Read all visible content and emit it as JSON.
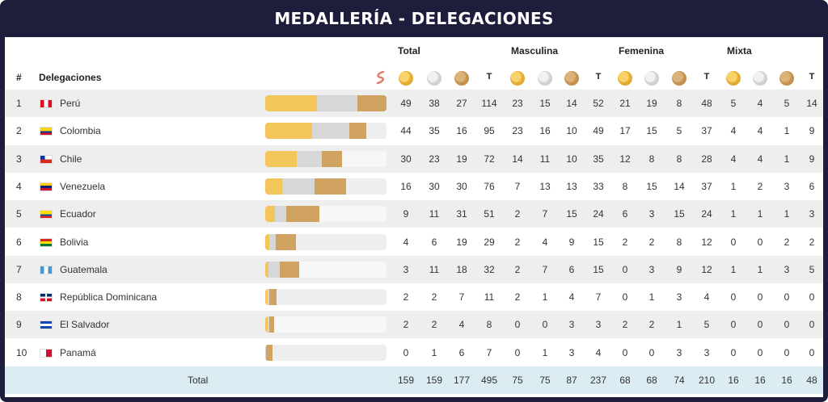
{
  "title": "MEDALLERÍA - DELEGACIONES",
  "groups": {
    "total": "Total",
    "masculina": "Masculina",
    "femenina": "Femenina",
    "mixta": "Mixta"
  },
  "headers": {
    "rank": "#",
    "delegation": "Delegaciones",
    "t": "T"
  },
  "icons": {
    "gold": "gold-medal-icon",
    "silver": "silver-medal-icon",
    "bronze": "bronze-medal-icon",
    "sort": "sort-icon"
  },
  "colors": {
    "header_bg": "#1e1d3b",
    "gold": "#f2c65a",
    "silver": "#d7d7d7",
    "bronze": "#d0a460",
    "total_bg": "#dcecf3"
  },
  "rows": [
    {
      "rank": "1",
      "name": "Perú",
      "flag": "peru",
      "total": [
        "49",
        "38",
        "27",
        "114"
      ],
      "masculina": [
        "23",
        "15",
        "14",
        "52"
      ],
      "femenina": [
        "21",
        "19",
        "8",
        "48"
      ],
      "mixta": [
        "5",
        "4",
        "5",
        "14"
      ]
    },
    {
      "rank": "2",
      "name": "Colombia",
      "flag": "colombia",
      "total": [
        "44",
        "35",
        "16",
        "95"
      ],
      "masculina": [
        "23",
        "16",
        "10",
        "49"
      ],
      "femenina": [
        "17",
        "15",
        "5",
        "37"
      ],
      "mixta": [
        "4",
        "4",
        "1",
        "9"
      ]
    },
    {
      "rank": "3",
      "name": "Chile",
      "flag": "chile",
      "total": [
        "30",
        "23",
        "19",
        "72"
      ],
      "masculina": [
        "14",
        "11",
        "10",
        "35"
      ],
      "femenina": [
        "12",
        "8",
        "8",
        "28"
      ],
      "mixta": [
        "4",
        "4",
        "1",
        "9"
      ]
    },
    {
      "rank": "4",
      "name": "Venezuela",
      "flag": "venezuela",
      "total": [
        "16",
        "30",
        "30",
        "76"
      ],
      "masculina": [
        "7",
        "13",
        "13",
        "33"
      ],
      "femenina": [
        "8",
        "15",
        "14",
        "37"
      ],
      "mixta": [
        "1",
        "2",
        "3",
        "6"
      ]
    },
    {
      "rank": "5",
      "name": "Ecuador",
      "flag": "ecuador",
      "total": [
        "9",
        "11",
        "31",
        "51"
      ],
      "masculina": [
        "2",
        "7",
        "15",
        "24"
      ],
      "femenina": [
        "6",
        "3",
        "15",
        "24"
      ],
      "mixta": [
        "1",
        "1",
        "1",
        "3"
      ]
    },
    {
      "rank": "6",
      "name": "Bolivia",
      "flag": "bolivia",
      "total": [
        "4",
        "6",
        "19",
        "29"
      ],
      "masculina": [
        "2",
        "4",
        "9",
        "15"
      ],
      "femenina": [
        "2",
        "2",
        "8",
        "12"
      ],
      "mixta": [
        "0",
        "0",
        "2",
        "2"
      ]
    },
    {
      "rank": "7",
      "name": "Guatemala",
      "flag": "guatemala",
      "total": [
        "3",
        "11",
        "18",
        "32"
      ],
      "masculina": [
        "2",
        "7",
        "6",
        "15"
      ],
      "femenina": [
        "0",
        "3",
        "9",
        "12"
      ],
      "mixta": [
        "1",
        "1",
        "3",
        "5"
      ]
    },
    {
      "rank": "8",
      "name": "República Dominicana",
      "flag": "dominicana",
      "total": [
        "2",
        "2",
        "7",
        "11"
      ],
      "masculina": [
        "2",
        "1",
        "4",
        "7"
      ],
      "femenina": [
        "0",
        "1",
        "3",
        "4"
      ],
      "mixta": [
        "0",
        "0",
        "0",
        "0"
      ]
    },
    {
      "rank": "9",
      "name": "El Salvador",
      "flag": "elsalvador",
      "total": [
        "2",
        "2",
        "4",
        "8"
      ],
      "masculina": [
        "0",
        "0",
        "3",
        "3"
      ],
      "femenina": [
        "2",
        "2",
        "1",
        "5"
      ],
      "mixta": [
        "0",
        "0",
        "0",
        "0"
      ]
    },
    {
      "rank": "10",
      "name": "Panamá",
      "flag": "panama",
      "total": [
        "0",
        "1",
        "6",
        "7"
      ],
      "masculina": [
        "0",
        "1",
        "3",
        "4"
      ],
      "femenina": [
        "0",
        "0",
        "3",
        "3"
      ],
      "mixta": [
        "0",
        "0",
        "0",
        "0"
      ]
    }
  ],
  "totals": {
    "label": "Total",
    "total": [
      "159",
      "159",
      "177",
      "495"
    ],
    "masculina": [
      "75",
      "75",
      "87",
      "237"
    ],
    "femenina": [
      "68",
      "68",
      "74",
      "210"
    ],
    "mixta": [
      "16",
      "16",
      "16",
      "48"
    ]
  }
}
